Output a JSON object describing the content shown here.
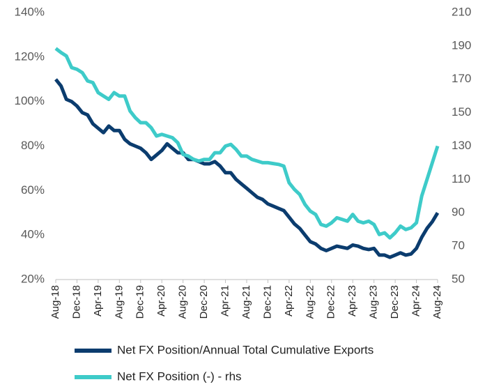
{
  "chart_data": {
    "type": "line",
    "categories": [
      "Aug-18",
      null,
      null,
      null,
      "Dec-18",
      null,
      null,
      null,
      "Apr-19",
      null,
      null,
      null,
      "Aug-19",
      null,
      null,
      null,
      "Dec-19",
      null,
      null,
      null,
      "Apr-20",
      null,
      null,
      null,
      "Aug-20",
      null,
      null,
      null,
      "Dec-20",
      null,
      null,
      null,
      "Apr-21",
      null,
      null,
      null,
      "Aug-21",
      null,
      null,
      null,
      "Dec-21",
      null,
      null,
      null,
      "Apr-22",
      null,
      null,
      null,
      "Aug-22",
      null,
      null,
      null,
      "Dec-22",
      null,
      null,
      null,
      "Apr-23",
      null,
      null,
      null,
      "Aug-23",
      null,
      null,
      null,
      "Dec-23",
      null,
      null,
      null,
      "Apr-24",
      null,
      null,
      null,
      "Aug-24"
    ],
    "series": [
      {
        "name": "Net FX Position/Annual Total Cumulative Exports",
        "color": "#0b3c6e",
        "values": [
          110,
          107,
          101,
          100,
          98,
          95,
          94,
          90,
          88,
          86,
          89,
          87,
          87,
          83,
          81,
          80,
          79,
          77,
          74,
          76,
          78,
          81,
          79,
          77,
          77,
          74,
          74,
          73,
          72,
          72,
          73,
          71,
          68,
          68,
          65,
          63,
          61,
          59,
          57,
          56,
          54,
          53,
          52,
          51,
          48,
          45,
          43,
          40,
          37,
          36,
          34,
          33,
          34,
          35,
          34.5,
          34,
          35.5,
          35,
          34,
          33.5,
          34,
          31,
          31,
          30,
          31,
          32,
          31,
          31.5,
          34,
          39,
          43,
          46,
          50
        ]
      },
      {
        "name": "Net FX Position (-) - rhs",
        "color": "#3ecbc9",
        "axis": "y2",
        "values": [
          188.5,
          186,
          184,
          177,
          176,
          174,
          169,
          168,
          162,
          160,
          158,
          162,
          160,
          160,
          151,
          147,
          144,
          144,
          141,
          136,
          137,
          136,
          135,
          132,
          125,
          124,
          122,
          121,
          122,
          122,
          126,
          126,
          130,
          131,
          128,
          124,
          124,
          122,
          121,
          120,
          120,
          119.5,
          119,
          118,
          108,
          104,
          101,
          95,
          91,
          89,
          83,
          82,
          84,
          87,
          86,
          85,
          89,
          85,
          84,
          85,
          83,
          77,
          78,
          75,
          78,
          82,
          80,
          81,
          84,
          100,
          110,
          120,
          130
        ]
      }
    ],
    "ylim": [
      20,
      140
    ],
    "yticks": [
      {
        "value": 20,
        "label": "20%"
      },
      {
        "value": 40,
        "label": "40%"
      },
      {
        "value": 60,
        "label": "60%"
      },
      {
        "value": 80,
        "label": "80%"
      },
      {
        "value": 100,
        "label": "100%"
      },
      {
        "value": 120,
        "label": "120%"
      },
      {
        "value": 140,
        "label": "140%"
      }
    ],
    "y2lim": [
      50,
      210
    ],
    "y2ticks": [
      50,
      70,
      90,
      110,
      130,
      150,
      170,
      190,
      210
    ],
    "legend": "bottom"
  }
}
